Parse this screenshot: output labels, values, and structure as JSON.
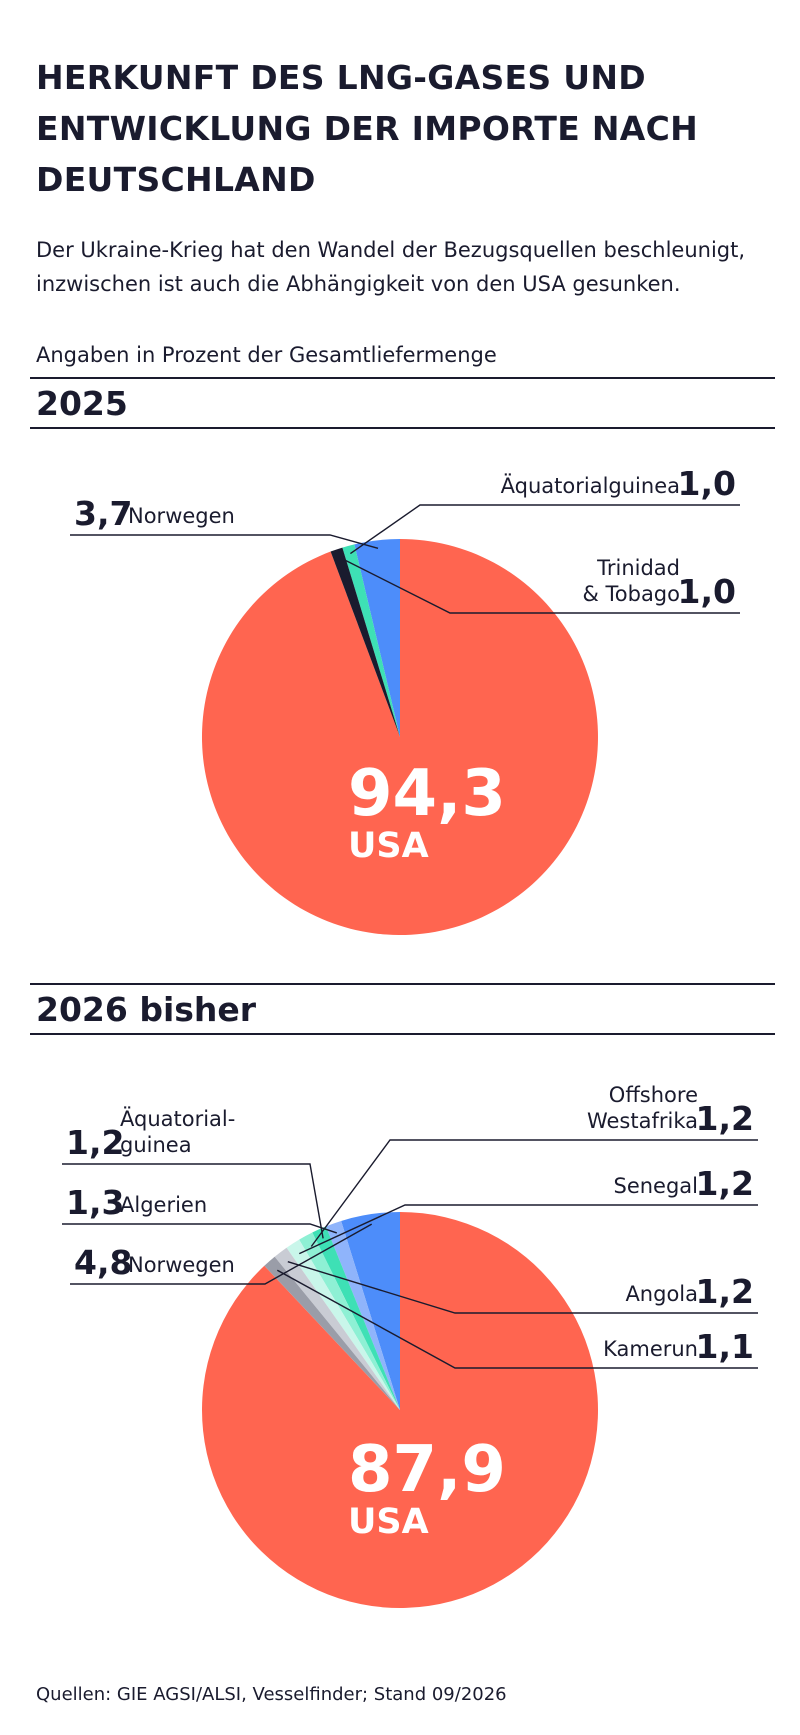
{
  "header": {
    "title": "HERKUNFT DES LNG-GASES UND ENTWICKLUNG DER IMPORTE NACH DEUTSCHLAND",
    "subtitle": "Der Ukraine-Krieg hat den Wandel der Bezugsquellen beschleunigt, inzwischen ist auch die Abhängigkeit von den USA gesunken.",
    "unit_note": "Angaben in Prozent der Gesamtliefermenge"
  },
  "footer": {
    "source": "Quellen: GIE AGSI/ALSI, Vesselfinder; Stand 09/2026"
  },
  "colors": {
    "USA": "#ff6550",
    "Norwegen": "#4d8dfa",
    "Algerien": "#8fb4fb",
    "Äquatorialguinea": "#3ee0b5",
    "Trinidad & Tobago": "#1a1b2e",
    "Offshore Westafrika": "#8ef0d4",
    "Senegal": "#c9f6ea",
    "Angola": "#c9ccd4",
    "Kamerun": "#9a9da8"
  },
  "chart_data": [
    {
      "type": "pie",
      "title": "2025",
      "unit": "Prozent",
      "slices": [
        {
          "label": "USA",
          "display_label": "USA",
          "value": 94.3,
          "value_text": "94,3"
        },
        {
          "label": "Norwegen",
          "display_label": "Norwegen",
          "value": 3.7,
          "value_text": "3,7"
        },
        {
          "label": "Äquatorialguinea",
          "display_label": "Äquatorialguinea",
          "value": 1.0,
          "value_text": "1,0"
        },
        {
          "label": "Trinidad & Tobago",
          "display_label": "Trinidad\n& Tobago",
          "value": 1.0,
          "value_text": "1,0"
        }
      ]
    },
    {
      "type": "pie",
      "title": "2026 bisher",
      "unit": "Prozent",
      "slices": [
        {
          "label": "USA",
          "display_label": "USA",
          "value": 87.9,
          "value_text": "87,9"
        },
        {
          "label": "Norwegen",
          "display_label": "Norwegen",
          "value": 4.8,
          "value_text": "4,8"
        },
        {
          "label": "Algerien",
          "display_label": "Algerien",
          "value": 1.3,
          "value_text": "1,3"
        },
        {
          "label": "Äquatorialguinea",
          "display_label": "Äquatorial-\nguinea",
          "value": 1.2,
          "value_text": "1,2"
        },
        {
          "label": "Offshore Westafrika",
          "display_label": "Offshore\nWestafrika",
          "value": 1.2,
          "value_text": "1,2"
        },
        {
          "label": "Senegal",
          "display_label": "Senegal",
          "value": 1.2,
          "value_text": "1,2"
        },
        {
          "label": "Angola",
          "display_label": "Angola",
          "value": 1.2,
          "value_text": "1,2"
        },
        {
          "label": "Kamerun",
          "display_label": "Kamerun",
          "value": 1.1,
          "value_text": "1,1"
        }
      ]
    }
  ]
}
